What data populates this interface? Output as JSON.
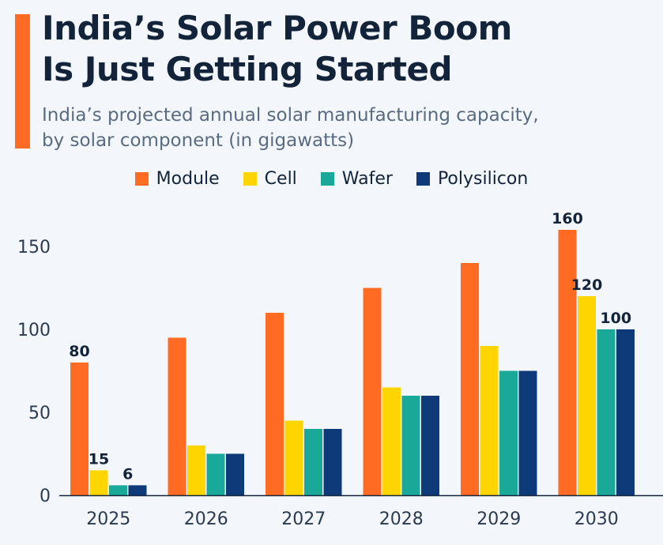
{
  "title_line1": "India’s Solar Power Boom",
  "title_line2": "Is Just Getting Started",
  "subtitle_line1": "India’s projected annual solar manufacturing capacity,",
  "subtitle_line2": "by solar component (in gigawatts)",
  "colors": {
    "accent": "#ff6b22",
    "Module": "#ff6b22",
    "Cell": "#ffd500",
    "Wafer": "#1aa898",
    "Polysilicon": "#0f3a7a"
  },
  "chart_data": {
    "type": "bar",
    "title": "India’s Solar Power Boom Is Just Getting Started",
    "xlabel": "",
    "ylabel": "",
    "ylim": [
      0,
      160
    ],
    "yticks": [
      0,
      50,
      100,
      150
    ],
    "grid": false,
    "legend": "top-center",
    "categories": [
      "2025",
      "2026",
      "2027",
      "2028",
      "2029",
      "2030"
    ],
    "series": [
      {
        "name": "Module",
        "values": [
          80,
          95,
          110,
          125,
          140,
          160
        ]
      },
      {
        "name": "Cell",
        "values": [
          15,
          30,
          45,
          65,
          90,
          120
        ]
      },
      {
        "name": "Wafer",
        "values": [
          6,
          25,
          40,
          60,
          75,
          100
        ]
      },
      {
        "name": "Polysilicon",
        "values": [
          6,
          25,
          40,
          60,
          75,
          100
        ]
      }
    ],
    "data_labels": [
      {
        "category": "2025",
        "series": "Module",
        "text": "80"
      },
      {
        "category": "2025",
        "series": "Cell",
        "text": "15"
      },
      {
        "category": "2025",
        "series": "Wafer+Polysilicon",
        "text": "6"
      },
      {
        "category": "2030",
        "series": "Module",
        "text": "160"
      },
      {
        "category": "2030",
        "series": "Cell",
        "text": "120"
      },
      {
        "category": "2030",
        "series": "Wafer+Polysilicon",
        "text": "100"
      }
    ]
  }
}
